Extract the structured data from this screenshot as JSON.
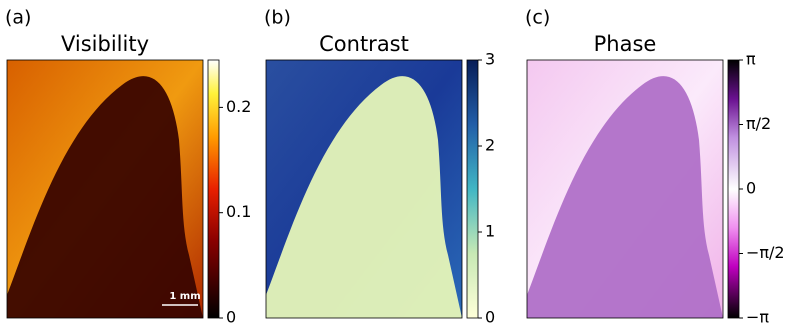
{
  "chart_data": [
    {
      "type": "image",
      "panel_label": "(a)",
      "title": "Visibility",
      "colormap": "hot",
      "annotation": "1 mm",
      "ylim": [
        0,
        0.245
      ],
      "yticks": [
        0,
        0.1,
        0.2
      ]
    },
    {
      "type": "image",
      "panel_label": "(b)",
      "title": "Contrast",
      "colormap": "ylgnbu",
      "ylim": [
        0,
        3
      ],
      "yticks": [
        0,
        1,
        2,
        3
      ]
    },
    {
      "type": "image",
      "panel_label": "(c)",
      "title": "Phase",
      "colormap": "phase",
      "ylim": [
        -3.1416,
        3.1416
      ],
      "yticks": [
        {
          "value": -3.1416,
          "label": "−π"
        },
        {
          "value": -1.5708,
          "label": "−π/2"
        },
        0,
        {
          "value": 1.5708,
          "label": "π/2"
        },
        {
          "value": 3.1416,
          "label": "π"
        }
      ]
    }
  ]
}
